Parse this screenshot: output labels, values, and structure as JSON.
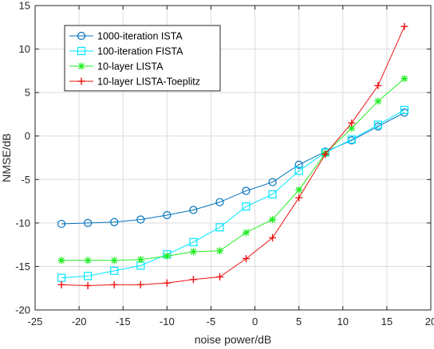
{
  "chart_data": {
    "type": "line",
    "xlabel": "noise power/dB",
    "ylabel": "NMSE/dB",
    "xlim": [
      -25,
      20
    ],
    "ylim": [
      -20,
      15
    ],
    "xticks": [
      -25,
      -20,
      -15,
      -10,
      -5,
      0,
      5,
      10,
      15,
      20
    ],
    "yticks": [
      -20,
      -15,
      -10,
      -5,
      0,
      5,
      10,
      15
    ],
    "grid": true,
    "legend_position": "top-left",
    "x": [
      -22,
      -19,
      -16,
      -13,
      -10,
      -7,
      -4,
      -1,
      2,
      5,
      8,
      11,
      14,
      17
    ],
    "series": [
      {
        "name": "1000-iteration ISTA",
        "color": "#0072BD",
        "marker": "circle",
        "values": [
          -10.1,
          -10.0,
          -9.9,
          -9.6,
          -9.1,
          -8.5,
          -7.6,
          -6.3,
          -5.3,
          -3.3,
          -1.8,
          -0.5,
          1.1,
          2.7
        ]
      },
      {
        "name": "100-iteration FISTA",
        "color": "#00E5FF",
        "marker": "square",
        "values": [
          -16.3,
          -16.1,
          -15.5,
          -14.9,
          -13.6,
          -12.2,
          -10.5,
          -8.1,
          -6.7,
          -4.0,
          -1.9,
          -0.4,
          1.3,
          3.0
        ]
      },
      {
        "name": "10-layer LISTA",
        "color": "#22EE22",
        "marker": "asterisk",
        "values": [
          -14.3,
          -14.3,
          -14.3,
          -14.2,
          -13.8,
          -13.3,
          -13.2,
          -11.1,
          -9.6,
          -6.2,
          -2.0,
          0.9,
          4.0,
          6.6
        ]
      },
      {
        "name": "10-layer LISTA-Toeplitz",
        "color": "#EE1111",
        "marker": "plus",
        "values": [
          -17.1,
          -17.2,
          -17.1,
          -17.1,
          -16.9,
          -16.5,
          -16.2,
          -14.1,
          -11.7,
          -7.1,
          -2.1,
          1.5,
          5.8,
          12.6
        ]
      }
    ]
  }
}
